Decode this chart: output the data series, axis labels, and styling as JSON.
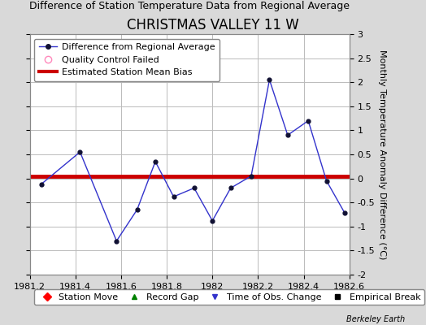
{
  "title": "CHRISTMAS VALLEY 11 W",
  "subtitle": "Difference of Station Temperature Data from Regional Average",
  "ylabel": "Monthly Temperature Anomaly Difference (°C)",
  "xlabel_ticks": [
    1981.2,
    1981.4,
    1981.6,
    1981.8,
    1982.0,
    1982.2,
    1982.4,
    1982.6
  ],
  "xlim": [
    1981.2,
    1982.6
  ],
  "ylim": [
    -2,
    3
  ],
  "yticks": [
    -2,
    -1.5,
    -1,
    -0.5,
    0,
    0.5,
    1,
    1.5,
    2,
    2.5,
    3
  ],
  "ytick_labels": [
    "-2",
    "-1.5",
    "-1",
    "-0.5",
    "0",
    "0.5",
    "1",
    "1.5",
    "2",
    "2.5",
    "3"
  ],
  "x_data": [
    1981.25,
    1981.42,
    1981.58,
    1981.67,
    1981.75,
    1981.83,
    1981.92,
    1982.0,
    1982.08,
    1982.17,
    1982.25,
    1982.33,
    1982.42,
    1982.5,
    1982.58
  ],
  "y_data": [
    -0.12,
    0.55,
    -1.3,
    -0.65,
    0.35,
    -0.38,
    -0.2,
    -0.88,
    -0.2,
    0.05,
    2.05,
    0.9,
    1.2,
    -0.05,
    -0.72
  ],
  "bias_y": 0.05,
  "line_color": "#3333cc",
  "marker_color": "#111133",
  "bias_color": "#cc0000",
  "bg_color": "#d9d9d9",
  "plot_bg_color": "#ffffff",
  "grid_color": "#bbbbbb",
  "title_fontsize": 12,
  "subtitle_fontsize": 9,
  "ylabel_fontsize": 8,
  "tick_fontsize": 8,
  "legend_fontsize": 8,
  "watermark": "Berkeley Earth",
  "watermark_fontsize": 7
}
